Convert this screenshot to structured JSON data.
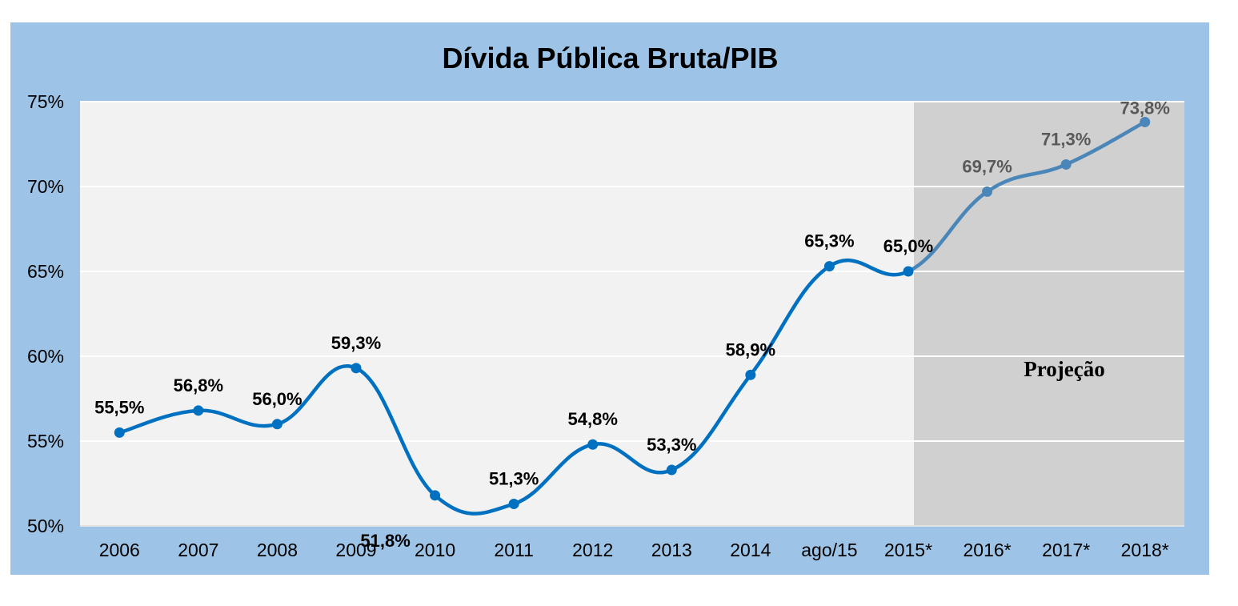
{
  "chart_data": {
    "type": "line",
    "title": "Dívida Pública Bruta/PIB",
    "xlabel": "",
    "ylabel": "",
    "ylim": [
      50,
      75
    ],
    "yticks": [
      50,
      55,
      60,
      65,
      70,
      75
    ],
    "ytick_labels": [
      "50%",
      "55%",
      "60%",
      "65%",
      "70%",
      "75%"
    ],
    "categories": [
      "2006",
      "2007",
      "2008",
      "2009",
      "2010",
      "2011",
      "2012",
      "2013",
      "2014",
      "ago/15",
      "2015*",
      "2016*",
      "2017*",
      "2018*"
    ],
    "series": [
      {
        "values": [
          55.5,
          56.8,
          56.0,
          59.3,
          51.8,
          51.3,
          54.8,
          53.3,
          58.9,
          65.3,
          65.0,
          69.7,
          71.3,
          73.8
        ],
        "labels": [
          "55,5%",
          "56,8%",
          "56,0%",
          "59,3%",
          "51,8%",
          "51,3%",
          "54,8%",
          "53,3%",
          "58,9%",
          "65,3%",
          "65,0%",
          "69,7%",
          "71,3%",
          "73,8%"
        ],
        "projection_start_index": 10
      }
    ],
    "annotation": "Projeção",
    "grid": true,
    "legend": "none",
    "colors": {
      "line": "#0070C0",
      "projection_line": "#4A86B8",
      "plot_bg": "#F2F2F2",
      "projection_bg": "#D0D0D0",
      "frame_bg": "#9DC3E6",
      "label": "#000000",
      "projection_label": "#595959"
    }
  }
}
